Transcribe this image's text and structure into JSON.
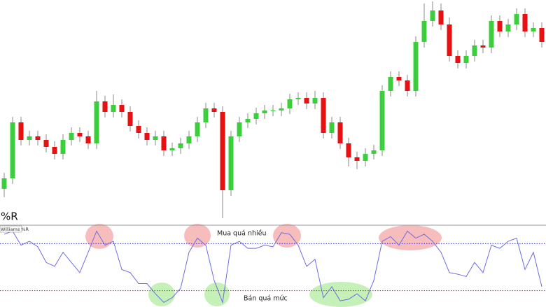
{
  "chart_data": [
    {
      "type": "candlestick",
      "up_color": "#3ccf3c",
      "down_color": "#e81010",
      "wick_color": "#8a8a8a",
      "ylim": [
        -20,
        300
      ],
      "open": [
        30,
        45,
        125,
        100,
        105,
        100,
        90,
        80,
        100,
        110,
        105,
        95,
        155,
        140,
        150,
        140,
        120,
        110,
        100,
        105,
        85,
        88,
        95,
        105,
        125,
        145,
        140,
        28,
        105,
        125,
        130,
        138,
        142,
        142,
        145,
        158,
        160,
        152,
        160,
        110,
        125,
        95,
        75,
        70,
        80,
        85,
        170,
        190,
        185,
        170,
        240,
        270,
        285,
        265,
        220,
        210,
        220,
        235,
        232,
        270,
        255,
        265,
        280,
        255,
        260
      ],
      "high": [
        53,
        133,
        133,
        113,
        113,
        108,
        98,
        108,
        118,
        118,
        113,
        170,
        163,
        165,
        158,
        148,
        128,
        118,
        113,
        113,
        96,
        103,
        113,
        133,
        153,
        153,
        148,
        113,
        133,
        138,
        146,
        150,
        150,
        153,
        166,
        168,
        168,
        170,
        168,
        133,
        133,
        103,
        83,
        88,
        93,
        178,
        198,
        198,
        193,
        248,
        295,
        298,
        295,
        275,
        228,
        228,
        243,
        243,
        278,
        278,
        273,
        288,
        288,
        268,
        268
      ],
      "low": [
        18,
        37,
        92,
        92,
        92,
        82,
        72,
        72,
        92,
        97,
        87,
        87,
        132,
        132,
        132,
        112,
        102,
        92,
        92,
        77,
        77,
        80,
        87,
        97,
        117,
        132,
        -12,
        20,
        97,
        117,
        122,
        130,
        134,
        134,
        137,
        150,
        144,
        144,
        102,
        102,
        87,
        62,
        58,
        62,
        72,
        77,
        162,
        177,
        162,
        162,
        232,
        262,
        257,
        212,
        202,
        202,
        212,
        224,
        224,
        247,
        247,
        257,
        247,
        247,
        232
      ],
      "close": [
        45,
        125,
        100,
        105,
        100,
        90,
        80,
        100,
        110,
        105,
        95,
        155,
        140,
        150,
        140,
        120,
        110,
        100,
        105,
        85,
        88,
        95,
        105,
        125,
        145,
        140,
        28,
        105,
        125,
        130,
        138,
        142,
        142,
        145,
        158,
        160,
        152,
        160,
        110,
        125,
        95,
        75,
        70,
        80,
        85,
        170,
        190,
        185,
        170,
        240,
        270,
        285,
        265,
        220,
        210,
        220,
        235,
        232,
        270,
        255,
        265,
        280,
        255,
        260,
        240
      ]
    },
    {
      "type": "line",
      "title": "%R",
      "ylim": [
        -100,
        0
      ],
      "series": [
        {
          "name": "Williams %R",
          "color": "#6d6de0",
          "values": [
            -8,
            -4,
            -22,
            -17,
            -24,
            -44,
            -49,
            -31,
            -44,
            -57,
            -31,
            -4,
            -22,
            -17,
            -53,
            -57,
            -71,
            -71,
            -84,
            -95,
            -89,
            -77,
            -31,
            -13,
            -22,
            -67,
            -95,
            -22,
            -17,
            -26,
            -26,
            -22,
            -24,
            -6,
            -8,
            -22,
            -49,
            -40,
            -89,
            -75,
            -93,
            -91,
            -84,
            -93,
            -67,
            -17,
            -11,
            -22,
            -4,
            -13,
            -8,
            -17,
            -31,
            -57,
            -59,
            -62,
            -44,
            -57,
            -22,
            -26,
            -17,
            -13,
            -53,
            -31,
            -75
          ]
        }
      ],
      "levels": [
        {
          "value": -20,
          "color": "#3b3bd0"
        },
        {
          "value": -80,
          "color": "#e02020"
        }
      ],
      "annotations": [
        "Mua quá nhiều",
        "Bán quá mức"
      ]
    }
  ]
}
